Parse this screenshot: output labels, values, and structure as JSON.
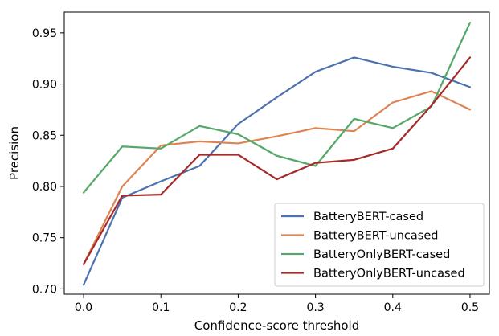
{
  "chart_data": {
    "type": "line",
    "title": "",
    "xlabel": "Confidence-score threshold",
    "ylabel": "Precision",
    "x": [
      0.0,
      0.05,
      0.1,
      0.15,
      0.2,
      0.25,
      0.3,
      0.35,
      0.4,
      0.45,
      0.5
    ],
    "xlim": [
      -0.025,
      0.525
    ],
    "ylim": [
      0.6948,
      0.9703
    ],
    "xticks": [
      0.0,
      0.1,
      0.2,
      0.3,
      0.4,
      0.5
    ],
    "xtick_labels": [
      "0.0",
      "0.1",
      "0.2",
      "0.3",
      "0.4",
      "0.5"
    ],
    "yticks": [
      0.7,
      0.75,
      0.8,
      0.85,
      0.9,
      0.95
    ],
    "ytick_labels": [
      "0.70",
      "0.75",
      "0.80",
      "0.85",
      "0.90",
      "0.95"
    ],
    "grid": false,
    "legend_position": "lower-right",
    "series": [
      {
        "name": "BatteryBERT-cased",
        "color": "#4c72b0",
        "values": [
          0.704,
          0.789,
          0.805,
          0.82,
          0.861,
          0.887,
          0.912,
          0.926,
          0.917,
          0.911,
          0.897
        ]
      },
      {
        "name": "BatteryBERT-uncased",
        "color": "#dd8452",
        "values": [
          0.724,
          0.8,
          0.84,
          0.844,
          0.842,
          0.849,
          0.857,
          0.854,
          0.882,
          0.893,
          0.875
        ]
      },
      {
        "name": "BatteryOnlyBERT-cased",
        "color": "#55a868",
        "values": [
          0.794,
          0.839,
          0.837,
          0.859,
          0.851,
          0.83,
          0.82,
          0.866,
          0.857,
          0.878,
          0.96
        ]
      },
      {
        "name": "BatteryOnlyBERT-uncased",
        "color": "#a52a2a",
        "values": [
          0.724,
          0.791,
          0.792,
          0.831,
          0.831,
          0.807,
          0.823,
          0.826,
          0.837,
          0.879,
          0.926
        ]
      }
    ]
  }
}
